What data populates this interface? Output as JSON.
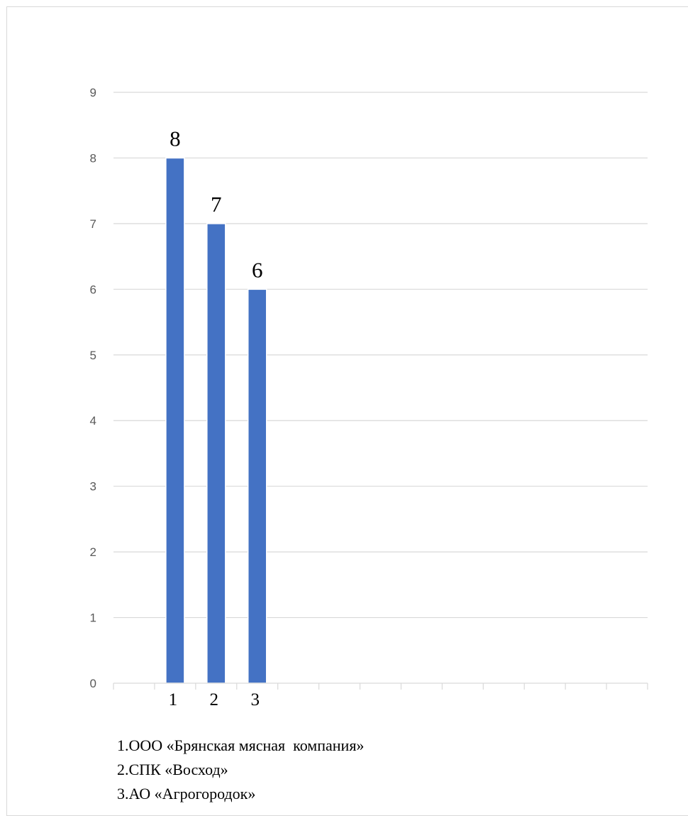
{
  "chart_data": {
    "type": "bar",
    "categories": [
      "1",
      "2",
      "3"
    ],
    "values": [
      8,
      7,
      6
    ],
    "data_labels": [
      "8",
      "7",
      "6"
    ],
    "ylim": [
      0,
      9
    ],
    "yticks": [
      "0",
      "1",
      "2",
      "3",
      "4",
      "5",
      "6",
      "7",
      "8",
      "9"
    ],
    "x_slots": 13,
    "grid": true,
    "bar_color": "#4472c4",
    "grid_color": "#d9d9d9",
    "title": "",
    "xlabel": "",
    "ylabel": ""
  },
  "legend": {
    "items": [
      "1.ООО «Брянская мясная  компания»",
      "2.СПК «Восход»",
      "3.АО «Агрогородок»"
    ]
  }
}
